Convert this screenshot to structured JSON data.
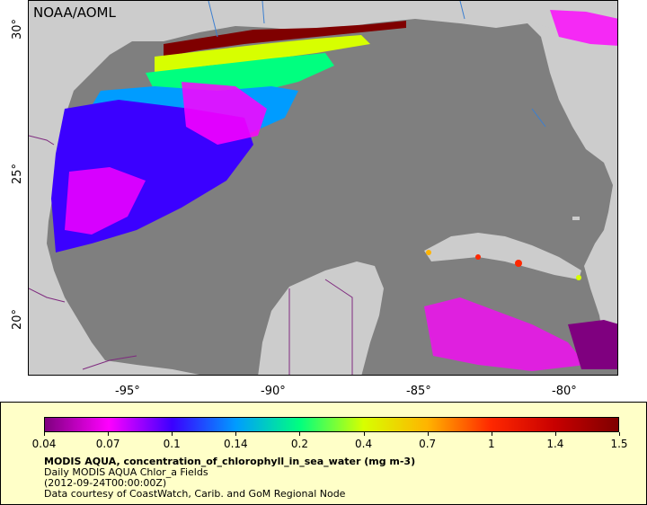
{
  "map": {
    "credit_label": "NOAA/AOML",
    "longitude_ticks": [
      "-95°",
      "-90°",
      "-85°",
      "-80°"
    ],
    "latitude_ticks": [
      "30°",
      "25°",
      "20°"
    ]
  },
  "colorbar": {
    "ticks": [
      "0.04",
      "0.07",
      "0.1",
      "0.14",
      "0.2",
      "0.4",
      "0.7",
      "1",
      "1.4",
      "1.5"
    ],
    "colors": [
      "#7f007f",
      "#ff00ff",
      "#3b00ff",
      "#009cff",
      "#00ff7f",
      "#d7ff00",
      "#ffb400",
      "#ff2800",
      "#c80000",
      "#7f0000"
    ]
  },
  "legend": {
    "title": "MODIS AQUA, concentration_of_chlorophyll_in_sea_water (mg m-3)",
    "line2": "Daily MODIS AQUA Chlor_a Fields",
    "line3": "(2012-09-24T00:00:00Z)",
    "line4": "Data courtesy of CoastWatch, Carib. and GoM Regional Node"
  }
}
